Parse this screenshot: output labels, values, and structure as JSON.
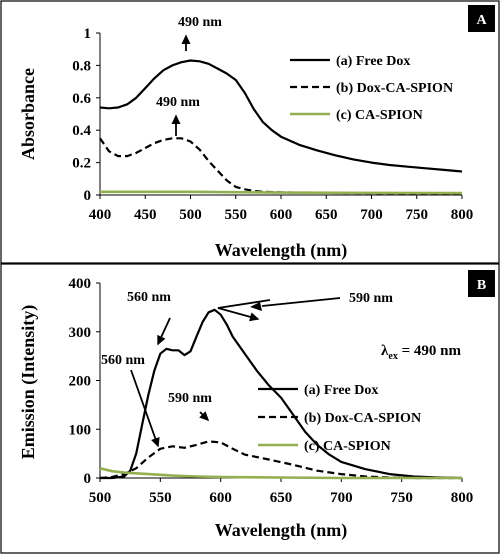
{
  "chart_data": [
    {
      "type": "line",
      "panel_label": "A",
      "xlabel": "Wavelength (nm)",
      "ylabel": "Absorbance",
      "xlim": [
        400,
        800
      ],
      "ylim": [
        0,
        1
      ],
      "xticks": [
        400,
        450,
        500,
        550,
        600,
        650,
        700,
        750,
        800
      ],
      "yticks": [
        0,
        0.2,
        0.4,
        0.6,
        0.8,
        1
      ],
      "ytick_labels": [
        "0",
        "0.2",
        "0.4",
        "0.6",
        "0.8",
        "1"
      ],
      "grid": false,
      "legend_position": "right",
      "series": [
        {
          "name": "(a) Free Dox",
          "color": "#000000",
          "dash": "solid",
          "x": [
            400,
            410,
            420,
            430,
            440,
            450,
            460,
            470,
            480,
            490,
            500,
            510,
            520,
            530,
            540,
            550,
            560,
            570,
            580,
            590,
            600,
            620,
            640,
            660,
            680,
            700,
            720,
            740,
            760,
            780,
            800
          ],
          "y": [
            0.54,
            0.535,
            0.54,
            0.56,
            0.6,
            0.66,
            0.72,
            0.77,
            0.8,
            0.82,
            0.83,
            0.825,
            0.81,
            0.78,
            0.75,
            0.71,
            0.63,
            0.53,
            0.45,
            0.4,
            0.36,
            0.31,
            0.275,
            0.245,
            0.22,
            0.2,
            0.185,
            0.175,
            0.165,
            0.155,
            0.145
          ]
        },
        {
          "name": "(b) Dox-CA-SPION",
          "color": "#000000",
          "dash": "dashed",
          "x": [
            400,
            410,
            420,
            430,
            440,
            450,
            460,
            470,
            480,
            490,
            500,
            510,
            520,
            530,
            540,
            550,
            560,
            570,
            580,
            590,
            600,
            650,
            700,
            750,
            800
          ],
          "y": [
            0.35,
            0.27,
            0.24,
            0.24,
            0.26,
            0.29,
            0.32,
            0.34,
            0.35,
            0.35,
            0.33,
            0.28,
            0.21,
            0.15,
            0.09,
            0.05,
            0.035,
            0.025,
            0.02,
            0.018,
            0.016,
            0.013,
            0.011,
            0.01,
            0.01
          ]
        },
        {
          "name": "(c) CA-SPION",
          "color": "#92b050",
          "dash": "solid",
          "x": [
            400,
            500,
            600,
            700,
            800
          ],
          "y": [
            0.02,
            0.02,
            0.015,
            0.013,
            0.012
          ]
        }
      ],
      "annotations": [
        {
          "text": "490 nm",
          "x": 490,
          "y": 0.98
        },
        {
          "text": "490 nm",
          "x": 490,
          "y": 0.55
        }
      ]
    },
    {
      "type": "line",
      "panel_label": "B",
      "xlabel": "Wavelength (nm)",
      "ylabel": "Emission (Intensity)",
      "xlim": [
        500,
        800
      ],
      "ylim": [
        0,
        400
      ],
      "xticks": [
        500,
        550,
        600,
        650,
        700,
        750,
        800
      ],
      "yticks": [
        0,
        100,
        200,
        300,
        400
      ],
      "grid": false,
      "legend_position": "right",
      "series": [
        {
          "name": "(a) Free  Dox",
          "color": "#000000",
          "dash": "solid",
          "x": [
            500,
            510,
            520,
            525,
            530,
            535,
            540,
            545,
            550,
            555,
            560,
            565,
            570,
            575,
            580,
            585,
            590,
            595,
            600,
            605,
            610,
            620,
            630,
            640,
            650,
            660,
            670,
            680,
            690,
            700,
            720,
            740,
            760,
            780,
            800
          ],
          "y": [
            0,
            0,
            3,
            15,
            50,
            110,
            170,
            220,
            255,
            265,
            262,
            262,
            252,
            260,
            290,
            320,
            340,
            345,
            335,
            315,
            290,
            255,
            220,
            190,
            165,
            130,
            95,
            68,
            48,
            33,
            18,
            8,
            3,
            1,
            0
          ]
        },
        {
          "name": "(b) Dox-CA-SPION",
          "color": "#000000",
          "dash": "dashed",
          "x": [
            500,
            510,
            520,
            530,
            540,
            550,
            560,
            570,
            580,
            590,
            600,
            610,
            620,
            640,
            660,
            680,
            700,
            720,
            740,
            760,
            780,
            800
          ],
          "y": [
            0,
            2,
            8,
            20,
            42,
            60,
            65,
            62,
            68,
            75,
            73,
            60,
            48,
            38,
            27,
            15,
            8,
            3,
            1,
            0,
            0,
            0
          ]
        },
        {
          "name": "(c) CA-SPION",
          "color": "#92b050",
          "dash": "solid",
          "x": [
            500,
            510,
            520,
            540,
            560,
            580,
            600,
            650,
            700,
            750,
            800
          ],
          "y": [
            20,
            14,
            11,
            8,
            5,
            3,
            2,
            1,
            0,
            0,
            0
          ]
        }
      ],
      "annotations": [
        {
          "text": "560 nm",
          "x": 525,
          "y": 360
        },
        {
          "text": "560 nm",
          "x": 510,
          "y": 255
        },
        {
          "text": "590 nm",
          "x": 645,
          "y": 365
        },
        {
          "text": "590 nm",
          "x": 590,
          "y": 170
        }
      ],
      "inset_label": {
        "lambda": "λ",
        "subscript": "ex",
        "rest": " = 490 nm"
      }
    }
  ]
}
